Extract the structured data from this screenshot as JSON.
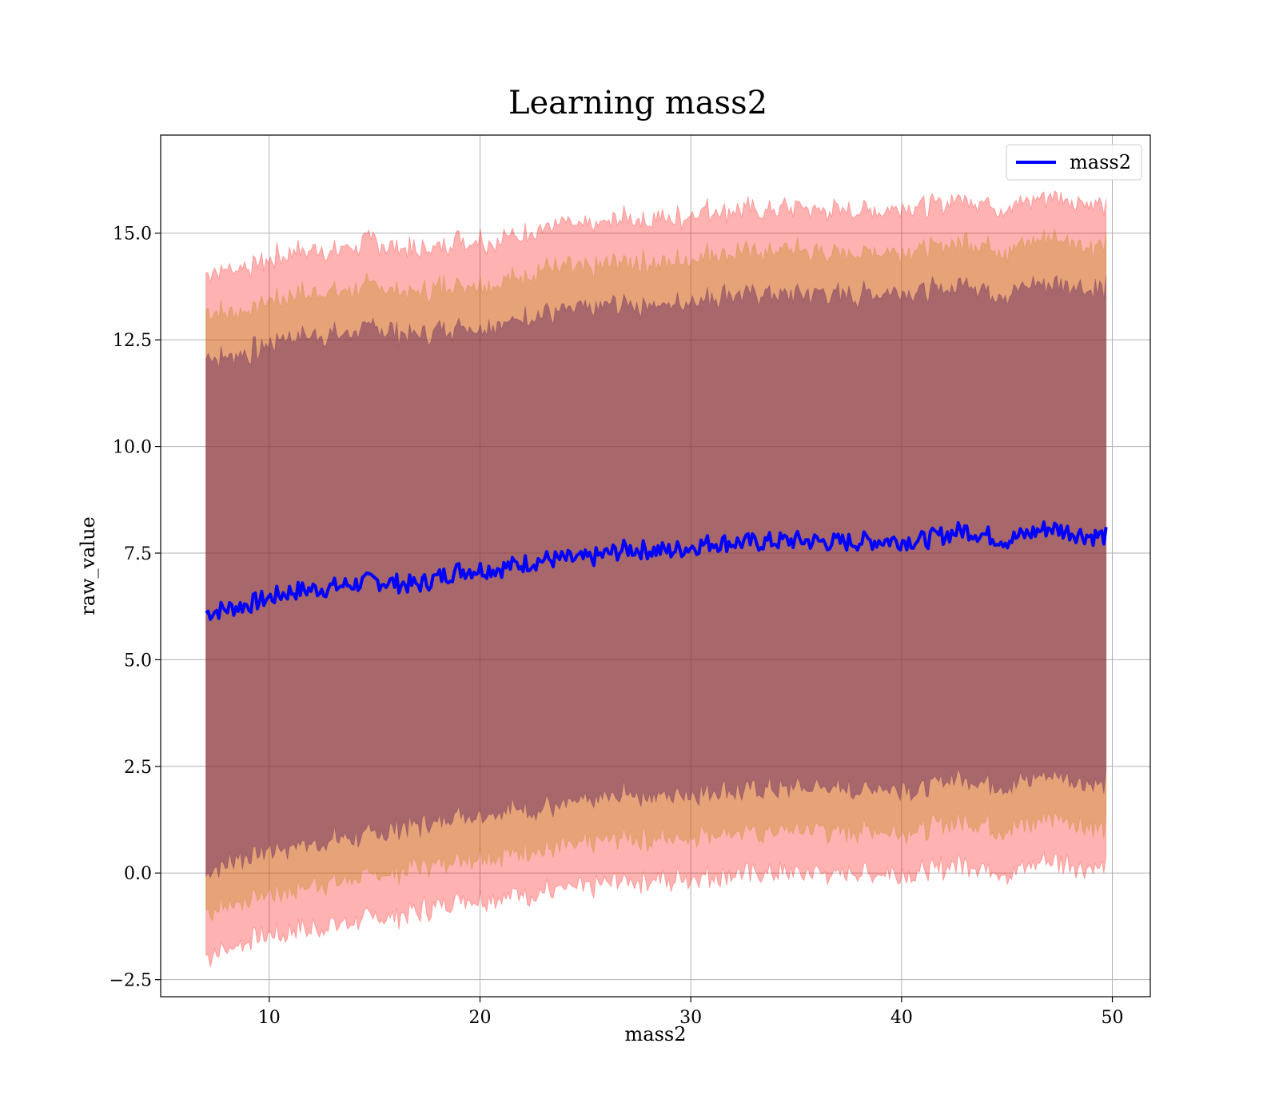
{
  "chart_data": {
    "type": "area",
    "title": "Learning mass2",
    "xlabel": "mass2",
    "ylabel": "raw_value",
    "xlim": [
      4.85,
      51.8
    ],
    "ylim": [
      -2.9,
      17.3
    ],
    "xticks": [
      10,
      20,
      30,
      40,
      50
    ],
    "xtick_labels": [
      "10",
      "20",
      "30",
      "40",
      "50"
    ],
    "yticks": [
      -2.5,
      0.0,
      2.5,
      5.0,
      7.5,
      10.0,
      12.5,
      15.0
    ],
    "ytick_labels": [
      "−2.5",
      "0.0",
      "2.5",
      "5.0",
      "7.5",
      "10.0",
      "12.5",
      "15.0"
    ],
    "grid": true,
    "legend": {
      "position": "upper right",
      "entries": [
        "mass2"
      ]
    },
    "x": [
      7.0,
      9.0,
      11.0,
      13.0,
      15.0,
      17.0,
      19.0,
      21.0,
      23.0,
      25.0,
      27.0,
      29.0,
      31.0,
      33.0,
      35.0,
      37.0,
      39.0,
      41.0,
      43.0,
      45.0,
      47.0,
      49.0,
      49.7
    ],
    "mean": [
      6.1,
      6.3,
      6.6,
      6.7,
      6.85,
      6.75,
      7.1,
      7.15,
      7.35,
      7.35,
      7.6,
      7.55,
      7.75,
      7.75,
      7.8,
      7.75,
      7.8,
      7.8,
      8.05,
      7.8,
      8.1,
      7.9,
      7.9
    ],
    "series": [
      {
        "name": "mass2",
        "color": "#0000ff",
        "values": [
          6.1,
          6.3,
          6.6,
          6.7,
          6.85,
          6.75,
          7.1,
          7.15,
          7.35,
          7.35,
          7.6,
          7.55,
          7.75,
          7.75,
          7.8,
          7.75,
          7.8,
          7.8,
          8.05,
          7.8,
          8.1,
          7.9,
          7.9
        ]
      }
    ],
    "bands": [
      {
        "sigma": 3,
        "color": "#ff0000",
        "opacity": 0.3,
        "lower": [
          -1.95,
          -1.6,
          -1.4,
          -1.2,
          -1.1,
          -0.9,
          -0.65,
          -0.55,
          -0.45,
          -0.35,
          -0.15,
          -0.2,
          -0.05,
          -0.05,
          0.0,
          -0.05,
          0.0,
          0.0,
          0.25,
          0.0,
          0.3,
          0.1,
          0.1
        ],
        "upper": [
          14.1,
          14.2,
          14.6,
          14.6,
          14.8,
          14.6,
          14.85,
          14.85,
          15.15,
          15.15,
          15.35,
          15.3,
          15.55,
          15.55,
          15.6,
          15.55,
          15.6,
          15.6,
          15.85,
          15.6,
          15.9,
          15.7,
          15.7
        ]
      },
      {
        "sigma": 2,
        "color": "#b8860b",
        "opacity": 0.35,
        "lower": [
          -0.95,
          -0.6,
          -0.4,
          -0.2,
          -0.1,
          0.1,
          0.35,
          0.45,
          0.55,
          0.65,
          0.85,
          0.8,
          0.95,
          0.95,
          1.0,
          0.95,
          1.0,
          1.0,
          1.25,
          1.0,
          1.3,
          1.1,
          1.1
        ],
        "upper": [
          13.1,
          13.2,
          13.6,
          13.6,
          13.8,
          13.6,
          13.85,
          13.85,
          14.15,
          14.15,
          14.35,
          14.3,
          14.55,
          14.55,
          14.6,
          14.55,
          14.6,
          14.6,
          14.85,
          14.6,
          14.9,
          14.7,
          14.7
        ]
      },
      {
        "sigma": 1,
        "color": "#5a1e5a",
        "opacity": 0.45,
        "lower": [
          0.05,
          0.4,
          0.6,
          0.8,
          0.9,
          1.1,
          1.35,
          1.45,
          1.55,
          1.65,
          1.85,
          1.8,
          1.95,
          1.95,
          2.0,
          1.95,
          2.0,
          2.0,
          2.25,
          2.0,
          2.3,
          2.1,
          2.1
        ],
        "upper": [
          12.1,
          12.2,
          12.6,
          12.6,
          12.8,
          12.6,
          12.85,
          12.85,
          13.15,
          13.15,
          13.35,
          13.3,
          13.55,
          13.55,
          13.6,
          13.55,
          13.6,
          13.6,
          13.85,
          13.6,
          13.9,
          13.7,
          13.7
        ]
      }
    ]
  }
}
